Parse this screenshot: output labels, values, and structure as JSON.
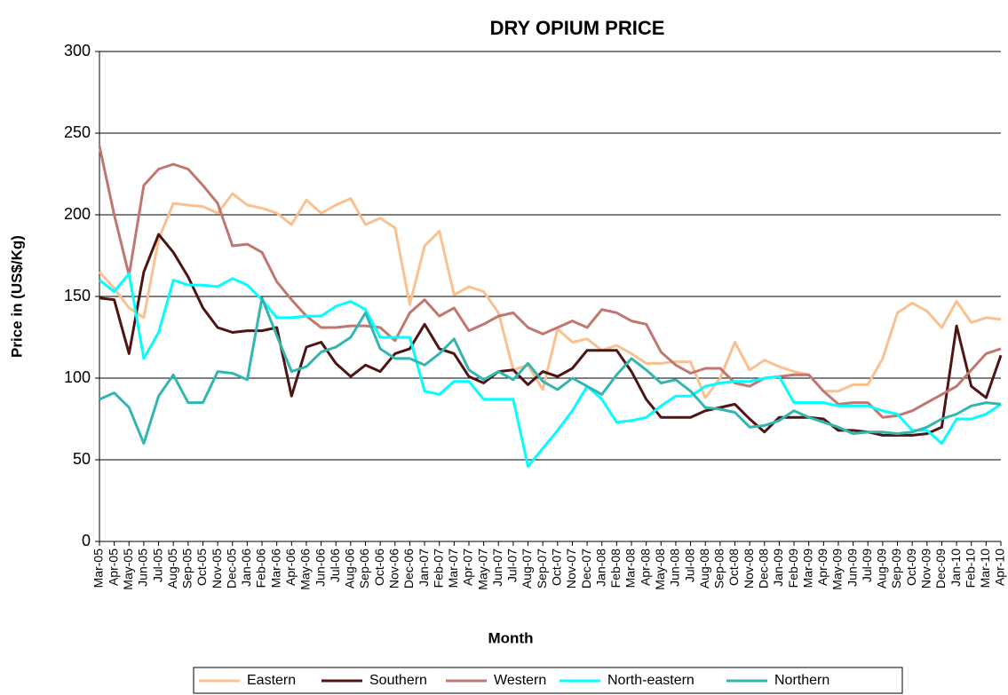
{
  "chart_data": {
    "type": "line",
    "title": "DRY OPIUM PRICE",
    "x_label": "Month",
    "y_label": "Price in (US$/Kg)",
    "categories": [
      "Mar-05",
      "Apr-05",
      "May-05",
      "Jun-05",
      "Jul-05",
      "Aug-05",
      "Sep-05",
      "Oct-05",
      "Nov-05",
      "Dec-05",
      "Jan-06",
      "Feb-06",
      "Mar-06",
      "Apr-06",
      "May-06",
      "Jun-06",
      "Jul-06",
      "Aug-06",
      "Sep-06",
      "Oct-06",
      "Nov-06",
      "Dec-06",
      "Jan-07",
      "Feb-07",
      "Mar-07",
      "Apr-07",
      "May-07",
      "Jun-07",
      "Jul-07",
      "Aug-07",
      "Sep-07",
      "Oct-07",
      "Nov-07",
      "Dec-07",
      "Jan-08",
      "Feb-08",
      "Mar-08",
      "Apr-08",
      "May-08",
      "Jun-08",
      "Jul-08",
      "Aug-08",
      "Sep-08",
      "Oct-08",
      "Nov-08",
      "Dec-08",
      "Jan-09",
      "Feb-09",
      "Mar-09",
      "Apr-09",
      "May-09",
      "Jun-09",
      "Jul-09",
      "Aug-09",
      "Sep-09",
      "Oct-09",
      "Nov-09",
      "Dec-09",
      "Jan-10",
      "Feb-10",
      "Mar-10",
      "Apr-10"
    ],
    "series": [
      {
        "name": "Eastern",
        "color": "#fac090",
        "values": [
          165,
          155,
          143,
          137,
          185,
          207,
          206,
          205,
          201,
          213,
          206,
          204,
          201,
          194,
          209,
          201,
          206,
          210,
          194,
          198,
          192,
          145,
          181,
          190,
          151,
          156,
          153,
          140,
          105,
          108,
          93,
          130,
          122,
          124,
          117,
          120,
          115,
          109,
          109,
          110,
          110,
          88,
          100,
          122,
          105,
          111,
          107,
          104,
          102,
          92,
          92,
          96,
          96,
          112,
          140,
          146,
          141,
          131,
          147,
          134,
          137,
          136
        ]
      },
      {
        "name": "Southern",
        "color": "#4f1414",
        "values": [
          149,
          148,
          115,
          165,
          188,
          177,
          162,
          143,
          131,
          128,
          129,
          129,
          131,
          89,
          119,
          122,
          109,
          101,
          108,
          104,
          115,
          118,
          133,
          118,
          115,
          101,
          97,
          104,
          105,
          96,
          104,
          101,
          106,
          117,
          117,
          117,
          104,
          87,
          76,
          76,
          76,
          80,
          82,
          84,
          75,
          67,
          76,
          76,
          76,
          75,
          68,
          68,
          67,
          65,
          65,
          65,
          66,
          70,
          132,
          95,
          88,
          114
        ]
      },
      {
        "name": "Western",
        "color": "#c0776f",
        "values": [
          242,
          200,
          163,
          218,
          228,
          231,
          228,
          218,
          207,
          181,
          182,
          177,
          159,
          148,
          138,
          131,
          131,
          132,
          132,
          131,
          123,
          140,
          148,
          138,
          143,
          129,
          133,
          138,
          140,
          131,
          127,
          131,
          135,
          131,
          142,
          140,
          135,
          133,
          116,
          108,
          103,
          106,
          106,
          97,
          95,
          100,
          101,
          102,
          102,
          92,
          84,
          85,
          85,
          76,
          77,
          80,
          85,
          90,
          95,
          105,
          115,
          118
        ]
      },
      {
        "name": "North-eastern",
        "color": "#00ffff",
        "values": [
          160,
          153,
          164,
          112,
          128,
          160,
          157,
          157,
          156,
          161,
          157,
          148,
          137,
          137,
          138,
          138,
          144,
          147,
          142,
          125,
          125,
          125,
          92,
          90,
          98,
          98,
          87,
          87,
          87,
          46,
          57,
          68,
          80,
          95,
          87,
          73,
          74,
          76,
          83,
          89,
          89,
          95,
          97,
          98,
          98,
          100,
          101,
          85,
          85,
          85,
          83,
          83,
          83,
          80,
          78,
          68,
          68,
          60,
          75,
          75,
          78,
          84
        ]
      },
      {
        "name": "Northern",
        "color": "#33b5b0",
        "values": [
          87,
          91,
          82,
          60,
          89,
          102,
          85,
          85,
          104,
          103,
          99,
          149,
          126,
          104,
          107,
          116,
          119,
          125,
          140,
          118,
          112,
          112,
          108,
          115,
          124,
          105,
          99,
          104,
          99,
          109,
          98,
          93,
          100,
          95,
          90,
          102,
          112,
          105,
          97,
          99,
          92,
          82,
          81,
          79,
          70,
          71,
          74,
          80,
          76,
          73,
          70,
          66,
          67,
          67,
          66,
          67,
          70,
          75,
          78,
          83,
          85,
          84
        ]
      }
    ],
    "ylim": [
      0,
      300
    ],
    "yticks": [
      0,
      50,
      100,
      150,
      200,
      250,
      300
    ],
    "grid": true,
    "legend": "bottom"
  }
}
